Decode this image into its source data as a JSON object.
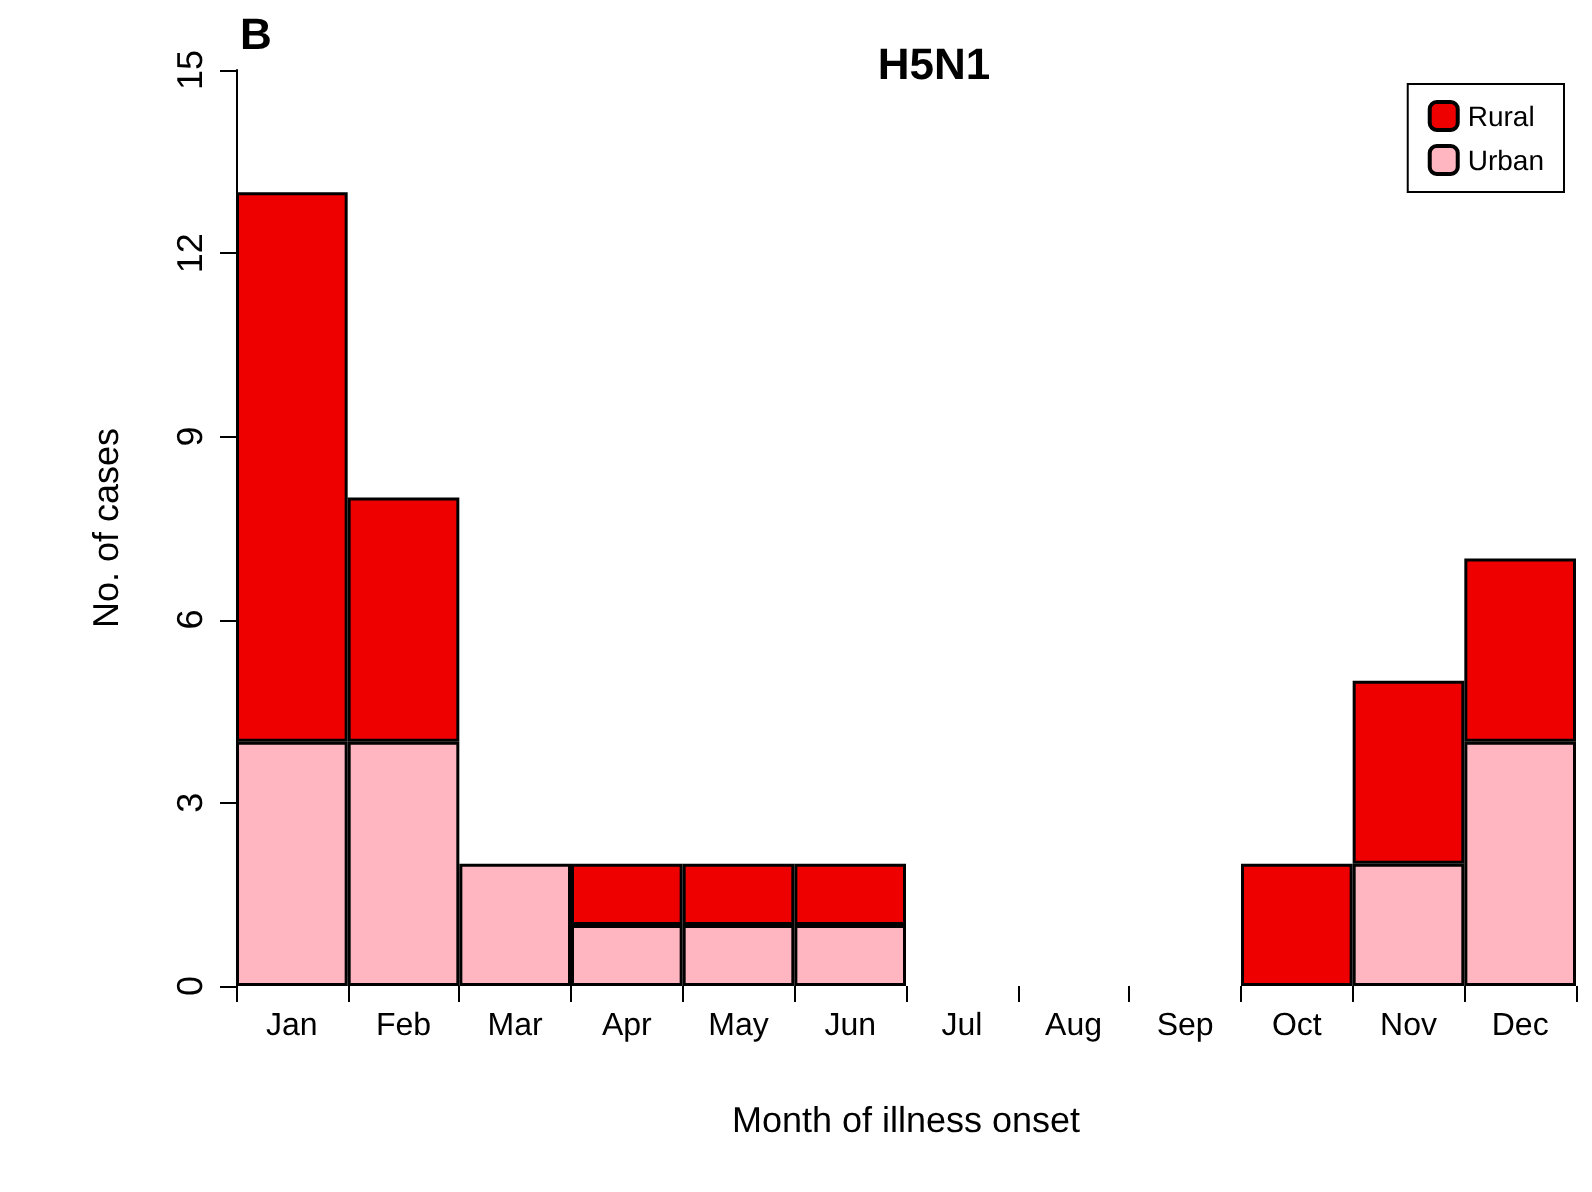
{
  "chart_data": {
    "type": "bar",
    "title": "H5N1",
    "xlabel": "Month of illness onset",
    "ylabel": "No. of cases",
    "annotations": [
      "B"
    ],
    "categories": [
      "Jan",
      "Feb",
      "Mar",
      "Apr",
      "May",
      "Jun",
      "Jul",
      "Aug",
      "Sep",
      "Oct",
      "Nov",
      "Dec"
    ],
    "stacked": true,
    "series": [
      {
        "name": "Urban",
        "color": "#ffb6c1",
        "values": [
          4,
          4,
          2,
          1,
          1,
          1,
          0,
          0,
          0,
          0,
          2,
          4
        ]
      },
      {
        "name": "Rural",
        "color": "#ee0000",
        "values": [
          9,
          4,
          0,
          1,
          1,
          1,
          0,
          0,
          0,
          2,
          3,
          3
        ]
      }
    ],
    "ylim": [
      0,
      15
    ],
    "yticks": [
      0,
      3,
      6,
      9,
      12,
      15
    ],
    "grid": false,
    "legend": "top right"
  }
}
